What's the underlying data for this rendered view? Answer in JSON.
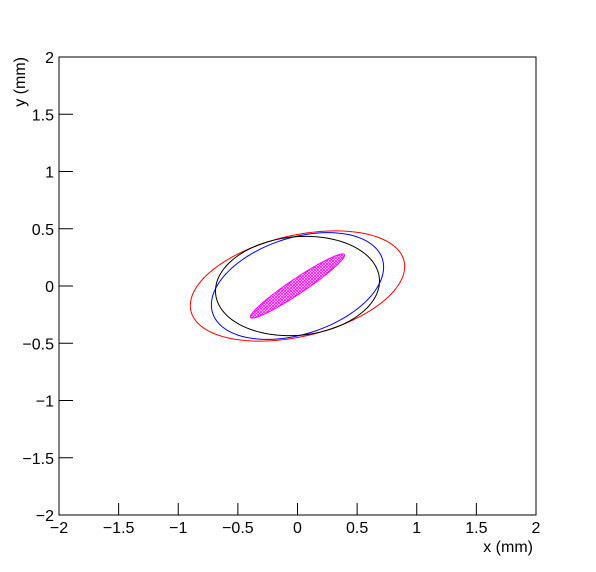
{
  "chart_data": {
    "type": "ellipse",
    "xlabel": "x (mm)",
    "ylabel": "y (mm)",
    "xlim": [
      -2,
      2
    ],
    "ylim": [
      -2,
      2
    ],
    "xticks": [
      {
        "value": -2,
        "label": "−2"
      },
      {
        "value": -1.5,
        "label": "−1.5"
      },
      {
        "value": -1,
        "label": "−1"
      },
      {
        "value": -0.5,
        "label": "−0.5"
      },
      0,
      0.5,
      1,
      1.5,
      2
    ],
    "yticks": [
      {
        "value": -2,
        "label": "−2"
      },
      {
        "value": -1.5,
        "label": "−1.5"
      },
      {
        "value": -1,
        "label": "−1"
      },
      {
        "value": -0.5,
        "label": "−0.5"
      },
      0,
      0.5,
      1,
      1.5,
      2
    ],
    "series": [
      {
        "color": "#ff0000",
        "fill": false,
        "cx": 0,
        "cy": 0,
        "rx": 0.92,
        "ry": 0.44,
        "angle": 14
      },
      {
        "color": "#0000ff",
        "fill": false,
        "cx": 0,
        "cy": 0,
        "rx": 0.75,
        "ry": 0.42,
        "angle": 19
      },
      {
        "color": "#000000",
        "fill": false,
        "cx": 0,
        "cy": 0,
        "rx": 0.69,
        "ry": 0.43,
        "angle": 6
      },
      {
        "color": "#ff00ff",
        "fill": true,
        "cx": 0,
        "cy": 0,
        "rx": 0.48,
        "ry": 0.065,
        "angle": 35
      }
    ]
  }
}
